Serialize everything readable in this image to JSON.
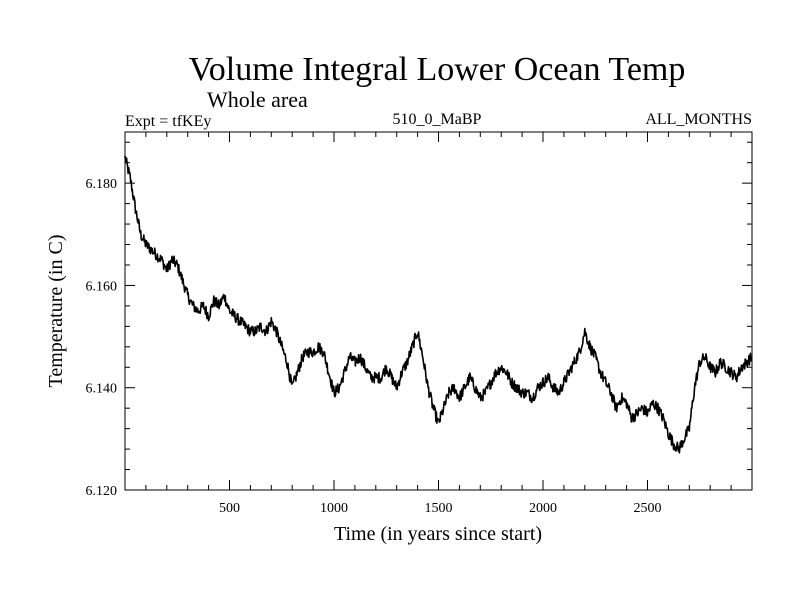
{
  "chart_data": {
    "type": "line",
    "title": "Volume Integral Lower Ocean Temp",
    "subtitle": "Whole area",
    "left_label": "Expt = tfKEy",
    "center_label": "510_0_MaBP",
    "right_label": "ALL_MONTHS",
    "xlabel": "Time (in years since start)",
    "ylabel": "Temperature (in C)",
    "xlim": [
      0,
      3000
    ],
    "ylim": [
      6.12,
      6.19
    ],
    "x_ticks": [
      500,
      1000,
      1500,
      2000,
      2500
    ],
    "x_tick_labels": [
      "500",
      "1000",
      "1500",
      "2000",
      "2500"
    ],
    "y_ticks": [
      6.12,
      6.14,
      6.16,
      6.18
    ],
    "y_tick_labels": [
      "6.120",
      "6.140",
      "6.160",
      "6.180"
    ],
    "grid": false,
    "series": [
      {
        "color": "#000000",
        "x": [
          0,
          25,
          50,
          75,
          100,
          125,
          150,
          175,
          200,
          225,
          250,
          275,
          300,
          325,
          350,
          375,
          400,
          425,
          450,
          475,
          500,
          525,
          550,
          575,
          600,
          625,
          650,
          675,
          700,
          725,
          750,
          775,
          800,
          825,
          850,
          875,
          900,
          925,
          950,
          975,
          1000,
          1025,
          1050,
          1075,
          1100,
          1125,
          1150,
          1175,
          1200,
          1225,
          1250,
          1275,
          1300,
          1325,
          1350,
          1375,
          1400,
          1425,
          1450,
          1475,
          1500,
          1525,
          1550,
          1575,
          1600,
          1625,
          1650,
          1675,
          1700,
          1725,
          1750,
          1775,
          1800,
          1825,
          1850,
          1875,
          1900,
          1925,
          1950,
          1975,
          2000,
          2025,
          2050,
          2075,
          2100,
          2125,
          2150,
          2175,
          2200,
          2225,
          2250,
          2275,
          2300,
          2325,
          2350,
          2375,
          2400,
          2425,
          2450,
          2475,
          2500,
          2525,
          2550,
          2575,
          2600,
          2625,
          2650,
          2675,
          2700,
          2725,
          2750,
          2775,
          2800,
          2825,
          2850,
          2875,
          2900,
          2925,
          2950,
          2975,
          3000
        ],
        "y": [
          6.185,
          6.181,
          6.175,
          6.17,
          6.168,
          6.167,
          6.166,
          6.165,
          6.163,
          6.165,
          6.164,
          6.161,
          6.158,
          6.156,
          6.155,
          6.156,
          6.154,
          6.157,
          6.156,
          6.158,
          6.155,
          6.154,
          6.153,
          6.152,
          6.151,
          6.151,
          6.152,
          6.151,
          6.153,
          6.151,
          6.148,
          6.145,
          6.14,
          6.143,
          6.146,
          6.147,
          6.147,
          6.148,
          6.147,
          6.143,
          6.139,
          6.14,
          6.143,
          6.146,
          6.145,
          6.146,
          6.144,
          6.142,
          6.142,
          6.142,
          6.144,
          6.142,
          6.14,
          6.143,
          6.145,
          6.148,
          6.151,
          6.146,
          6.14,
          6.136,
          6.133,
          6.136,
          6.139,
          6.14,
          6.138,
          6.14,
          6.142,
          6.14,
          6.138,
          6.139,
          6.141,
          6.143,
          6.144,
          6.143,
          6.141,
          6.14,
          6.139,
          6.139,
          6.138,
          6.14,
          6.141,
          6.142,
          6.14,
          6.139,
          6.141,
          6.143,
          6.145,
          6.147,
          6.151,
          6.148,
          6.146,
          6.143,
          6.141,
          6.139,
          6.136,
          6.138,
          6.137,
          6.134,
          6.135,
          6.136,
          6.135,
          6.137,
          6.136,
          6.134,
          6.131,
          6.129,
          6.128,
          6.13,
          6.132,
          6.14,
          6.145,
          6.146,
          6.144,
          6.143,
          6.145,
          6.144,
          6.143,
          6.142,
          6.144,
          6.145,
          6.146
        ]
      }
    ]
  }
}
